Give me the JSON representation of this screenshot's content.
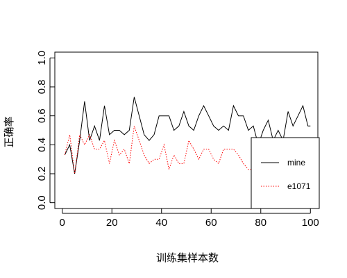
{
  "chart_data": {
    "type": "line",
    "title": "",
    "xlabel": "训练集样本数",
    "ylabel": "正确率",
    "xlim": [
      0,
      100
    ],
    "ylim": [
      0.0,
      1.0
    ],
    "xticks": [
      "0",
      "20",
      "40",
      "60",
      "80",
      "100"
    ],
    "yticks": [
      "0.0",
      "0.2",
      "0.4",
      "0.6",
      "0.8",
      "1.0"
    ],
    "grid": false,
    "legend": "right",
    "series": [
      {
        "name": "mine",
        "color": "#000000",
        "dash": "solid",
        "x": [
          1,
          3,
          5,
          7,
          9,
          11,
          13,
          15,
          17,
          19,
          21,
          23,
          25,
          27,
          29,
          31,
          33,
          35,
          37,
          39,
          41,
          43,
          45,
          47,
          49,
          51,
          53,
          55,
          57,
          59,
          61,
          63,
          65,
          67,
          69,
          71,
          73,
          75,
          77,
          79,
          81,
          83,
          85,
          87,
          89,
          91,
          93,
          95,
          97,
          99,
          100
        ],
        "y": [
          0.33,
          0.4,
          0.2,
          0.43,
          0.7,
          0.43,
          0.53,
          0.43,
          0.67,
          0.47,
          0.5,
          0.5,
          0.47,
          0.5,
          0.73,
          0.6,
          0.47,
          0.43,
          0.47,
          0.6,
          0.6,
          0.6,
          0.5,
          0.53,
          0.63,
          0.53,
          0.5,
          0.6,
          0.67,
          0.6,
          0.53,
          0.5,
          0.53,
          0.5,
          0.67,
          0.6,
          0.6,
          0.5,
          0.53,
          0.4,
          0.5,
          0.57,
          0.43,
          0.5,
          0.43,
          0.63,
          0.53,
          0.6,
          0.67,
          0.53,
          0.53
        ]
      },
      {
        "name": "e1071",
        "color": "#ff0000",
        "dash": "dotted",
        "x": [
          1,
          3,
          5,
          7,
          9,
          11,
          13,
          15,
          17,
          19,
          21,
          23,
          25,
          27,
          29,
          31,
          33,
          35,
          37,
          39,
          41,
          43,
          45,
          47,
          49,
          51,
          53,
          55,
          57,
          59,
          61,
          63,
          65,
          67,
          69,
          71,
          73,
          75,
          77
        ],
        "y": [
          0.33,
          0.47,
          0.2,
          0.47,
          0.4,
          0.47,
          0.37,
          0.37,
          0.43,
          0.27,
          0.43,
          0.33,
          0.37,
          0.27,
          0.53,
          0.43,
          0.33,
          0.27,
          0.3,
          0.3,
          0.4,
          0.23,
          0.33,
          0.27,
          0.27,
          0.43,
          0.37,
          0.3,
          0.37,
          0.37,
          0.3,
          0.27,
          0.37,
          0.37,
          0.37,
          0.33,
          0.27,
          0.23,
          0.23
        ]
      }
    ]
  }
}
